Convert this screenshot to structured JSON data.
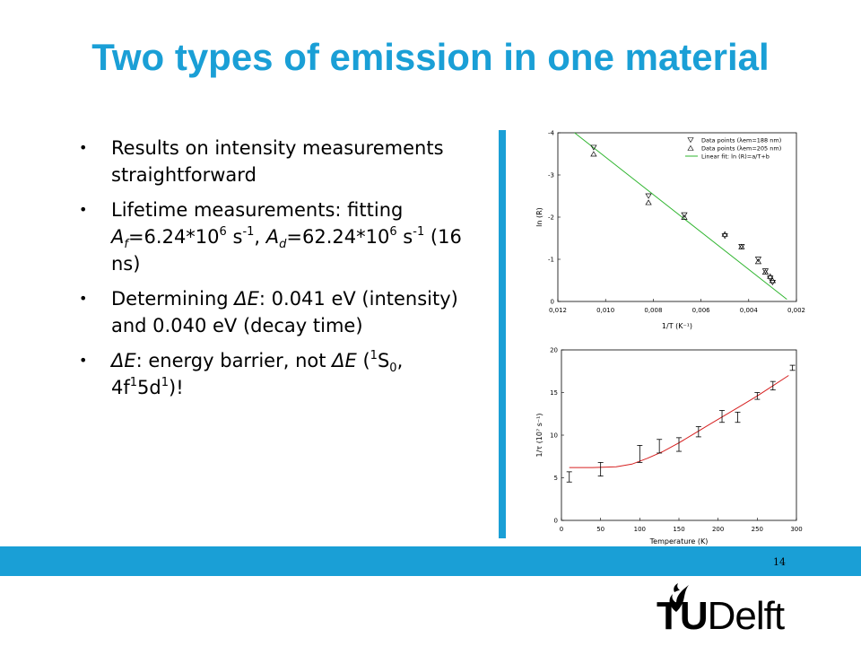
{
  "slide": {
    "title": "Two types of emission in one material",
    "page_number": "14",
    "logo": "TUDelft"
  },
  "bullets": {
    "b1": "Results on intensity measurements straightforward",
    "b2_pre": "Lifetime measurements: fitting ",
    "b2_af": "A",
    "b2_af_sub": "f",
    "b2_af_val": "=6.24*10",
    "b2_af_exp": "6",
    "b2_af_unit": " s",
    "b2_af_unit_exp": "-1",
    "b2_sep": ", ",
    "b2_ad": "A",
    "b2_ad_sub": "d",
    "b2_ad_val": "=62.24*10",
    "b2_ad_exp": "6",
    "b2_ad_unit": " s",
    "b2_ad_unit_exp": "-1",
    "b2_post": " (16 ns)",
    "b3_pre": "Determining ",
    "b3_de": "ΔE",
    "b3_post": ": 0.041 eV (intensity) and 0.040 eV (decay time)",
    "b4_de": "ΔE",
    "b4_mid": ": energy barrier, not ",
    "b4_de2": "ΔE",
    "b4_p1": " (",
    "b4_s_sup": "1",
    "b4_s": "S",
    "b4_s_sub": "0",
    "b4_p2": ", 4f",
    "b4_f_sup": "1",
    "b4_d": "5d",
    "b4_d_sup": "1",
    "b4_end": ")!"
  },
  "colors": {
    "accent": "#1a9fd6",
    "fit_line_top": "#2fb52f",
    "fit_line_bottom": "#d62020"
  },
  "chart_data": [
    {
      "type": "scatter",
      "xlabel": "1/T (K⁻¹)",
      "ylabel": "ln (R)",
      "xlim": [
        0.012,
        0.002
      ],
      "ylim": [
        0,
        4
      ],
      "xticks": [
        "0,012",
        "0,010",
        "0,008",
        "0,006",
        "0,004",
        "0,002"
      ],
      "yticks": [
        "0",
        "-1",
        "-2",
        "-3",
        "-4"
      ],
      "legend": [
        "Data points (λem=188 nm)",
        "Data points (λem=205 nm)",
        "Linear fit: ln (R)=a/T+b"
      ],
      "legend_position": "top-right",
      "series": [
        {
          "name": "Data points (λem=188 nm)",
          "marker": "triangle-down",
          "x": [
            0.0105,
            0.0082,
            0.0067,
            0.005,
            0.0043,
            0.0036,
            0.0033,
            0.0031,
            0.003
          ],
          "y": [
            3.65,
            2.5,
            2.05,
            1.55,
            1.3,
            1.0,
            0.72,
            0.55,
            0.45
          ]
        },
        {
          "name": "Data points (λem=205 nm)",
          "marker": "triangle-up",
          "x": [
            0.0105,
            0.0082,
            0.0067,
            0.005,
            0.0043,
            0.0036,
            0.0033,
            0.0031,
            0.003
          ],
          "y": [
            3.5,
            2.35,
            2.0,
            1.6,
            1.3,
            0.95,
            0.7,
            0.6,
            0.5
          ]
        },
        {
          "name": "Linear fit: ln (R)=a/T+b",
          "type": "line",
          "x": [
            0.0113,
            0.0024
          ],
          "y": [
            4.0,
            0.05
          ]
        }
      ]
    },
    {
      "type": "scatter",
      "xlabel": "Temperature (K)",
      "ylabel": "1/τ (10⁷ s⁻¹)",
      "xlim": [
        0,
        300
      ],
      "ylim": [
        0,
        20
      ],
      "xticks": [
        "0",
        "50",
        "100",
        "150",
        "200",
        "250",
        "300"
      ],
      "yticks": [
        "0",
        "5",
        "10",
        "15",
        "20"
      ],
      "series": [
        {
          "name": "data",
          "marker": "errorbar",
          "x": [
            10,
            50,
            100,
            125,
            150,
            175,
            205,
            225,
            250,
            270,
            295
          ],
          "y": [
            5.1,
            6.0,
            7.8,
            8.7,
            8.9,
            10.4,
            12.2,
            12.1,
            14.6,
            15.8,
            17.9
          ],
          "err": [
            0.6,
            0.8,
            1.0,
            0.8,
            0.8,
            0.6,
            0.7,
            0.6,
            0.4,
            0.5,
            0.3
          ]
        },
        {
          "name": "fit",
          "type": "line",
          "x": [
            10,
            40,
            70,
            90,
            110,
            130,
            150,
            170,
            190,
            210,
            230,
            250,
            270,
            290
          ],
          "y": [
            6.2,
            6.2,
            6.3,
            6.6,
            7.3,
            8.1,
            9.1,
            10.2,
            11.3,
            12.4,
            13.5,
            14.6,
            15.8,
            17.0
          ]
        }
      ]
    }
  ]
}
